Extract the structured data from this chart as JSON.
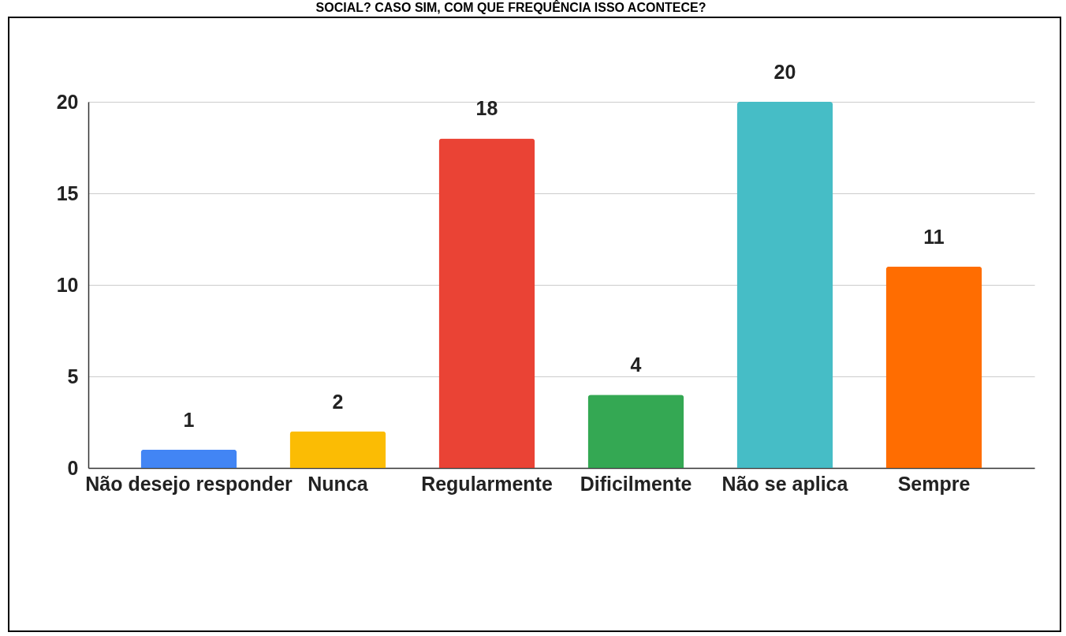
{
  "chart_data": {
    "type": "bar",
    "title": "SOCIAL? CASO SIM, COM QUE FREQUÊNCIA ISSO ACONTECE?",
    "categories": [
      "Não desejo responder",
      "Nunca",
      "Regularmente",
      "Dificilmente",
      "Não se aplica",
      "Sempre"
    ],
    "values": [
      1,
      2,
      18,
      4,
      20,
      11
    ],
    "colors": [
      "#4285f4",
      "#fbbc04",
      "#ea4335",
      "#34a853",
      "#46bdc6",
      "#ff6d01"
    ],
    "ylim": [
      0,
      20
    ],
    "yticks": [
      0,
      5,
      10,
      15,
      20
    ],
    "grid": "y",
    "data_labels": true
  }
}
